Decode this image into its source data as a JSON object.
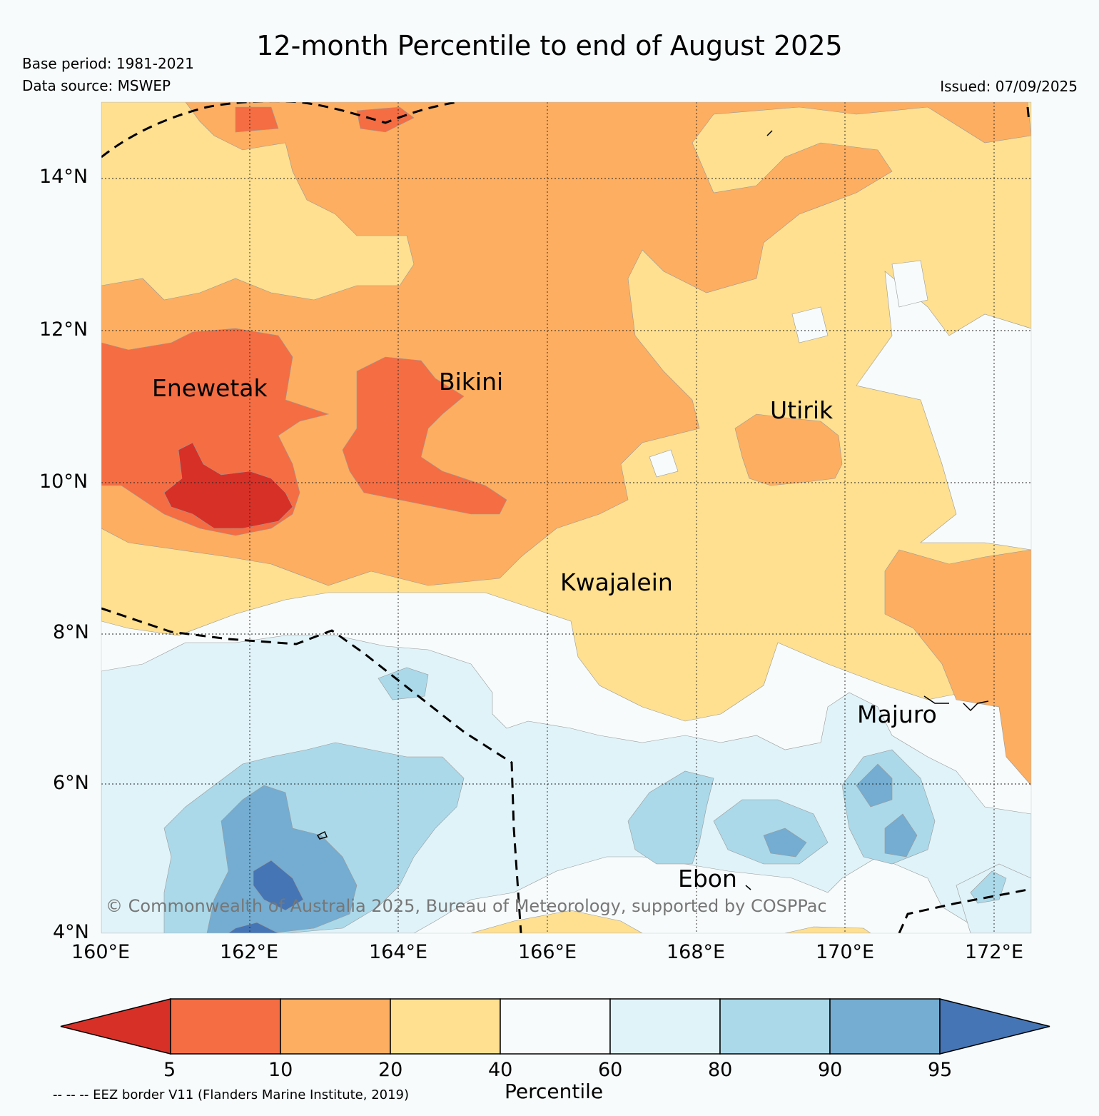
{
  "title": "12-month Percentile to end of August 2025",
  "base_period": "Base period: 1981-2021",
  "data_source": "Data source: MSWEP",
  "issued": "Issued: 07/09/2025",
  "copyright": "© Commonwealth of Australia 2025, Bureau of Meteorology, supported by COSPPac",
  "map": {
    "lon_range": [
      160,
      172.5
    ],
    "lat_range": [
      4,
      15
    ],
    "lon_ticks": [
      "160°E",
      "162°E",
      "164°E",
      "166°E",
      "168°E",
      "170°E",
      "172°E"
    ],
    "lat_ticks": [
      "14°N",
      "12°N",
      "10°N",
      "8°N",
      "6°N",
      "4°N"
    ],
    "places": [
      {
        "name": "Enewetak",
        "lon": 162.3,
        "lat": 11.2
      },
      {
        "name": "Bikini",
        "lon": 165.4,
        "lat": 11.3
      },
      {
        "name": "Utirik",
        "lon": 169.7,
        "lat": 10.9
      },
      {
        "name": "Kwajalein",
        "lon": 167.4,
        "lat": 8.6
      },
      {
        "name": "Majuro",
        "lon": 171.1,
        "lat": 6.9
      },
      {
        "name": "Ebon",
        "lon": 168.2,
        "lat": 4.7
      }
    ]
  },
  "colorbar": {
    "title": "Percentile",
    "labels": [
      "5",
      "10",
      "20",
      "40",
      "60",
      "80",
      "90",
      "95"
    ],
    "colors": [
      "#d73027",
      "#f46d43",
      "#fdae61",
      "#fee090",
      "#f7fbfc",
      "#e0f3f8",
      "#abd9e9",
      "#74add1",
      "#4575b4"
    ]
  },
  "eez_note": "-- -- -- EEZ border V11 (Flanders Marine Institute, 2019)"
}
